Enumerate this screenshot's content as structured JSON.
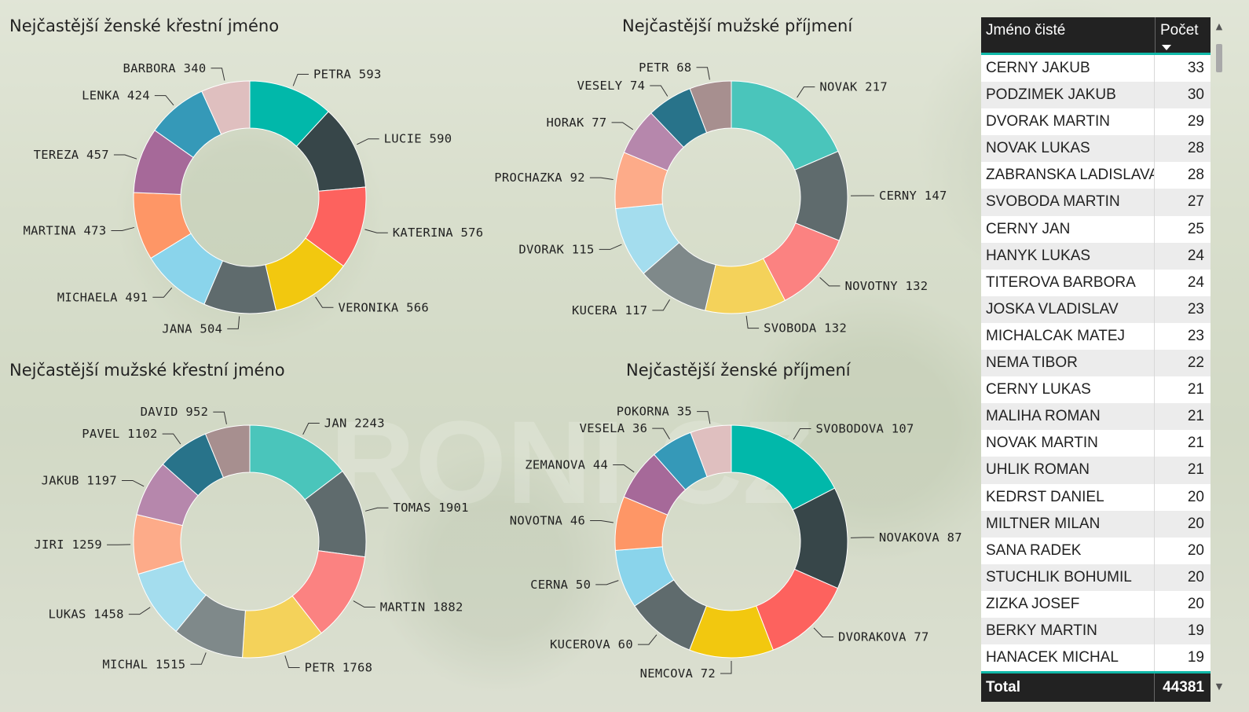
{
  "chart_data": [
    {
      "type": "pie",
      "title": "Nejčastější ženské křestní jméno",
      "slices": [
        {
          "label": "PETRA 593",
          "value": 593,
          "color": "#01B8AA"
        },
        {
          "label": "LUCIE 590",
          "value": 590,
          "color": "#374649"
        },
        {
          "label": "KATERINA 576",
          "value": 576,
          "color": "#FD625E"
        },
        {
          "label": "VERONIKA 566",
          "value": 566,
          "color": "#F2C80F"
        },
        {
          "label": "JANA 504",
          "value": 504,
          "color": "#5F6B6D"
        },
        {
          "label": "MICHAELA 491",
          "value": 491,
          "color": "#8AD4EB"
        },
        {
          "label": "MARTINA 473",
          "value": 473,
          "color": "#FE9666"
        },
        {
          "label": "TEREZA 457",
          "value": 457,
          "color": "#A66999"
        },
        {
          "label": "LENKA 424",
          "value": 424,
          "color": "#3599B8"
        },
        {
          "label": "BARBORA 340",
          "value": 340,
          "color": "#DFBFBF"
        }
      ]
    },
    {
      "type": "pie",
      "title": "Nejčastější mužské příjmení",
      "slices": [
        {
          "label": "NOVAK 217",
          "value": 217,
          "color": "#4AC5BB"
        },
        {
          "label": "CERNY 147",
          "value": 147,
          "color": "#5F6B6D"
        },
        {
          "label": "NOVOTNY 132",
          "value": 132,
          "color": "#FB8281"
        },
        {
          "label": "SVOBODA 132",
          "value": 132,
          "color": "#F4D25A"
        },
        {
          "label": "KUCERA 117",
          "value": 117,
          "color": "#7F898A"
        },
        {
          "label": "DVORAK 115",
          "value": 115,
          "color": "#A4DDEE"
        },
        {
          "label": "PROCHAZKA 92",
          "value": 92,
          "color": "#FDAB89"
        },
        {
          "label": "HORAK 77",
          "value": 77,
          "color": "#B687AC"
        },
        {
          "label": "VESELY 74",
          "value": 74,
          "color": "#28738A"
        },
        {
          "label": "PETR 68",
          "value": 68,
          "color": "#A78F8F"
        }
      ]
    },
    {
      "type": "pie",
      "title": "Nejčastější mužské křestní jméno",
      "slices": [
        {
          "label": "JAN 2243",
          "value": 2243,
          "color": "#4AC5BB"
        },
        {
          "label": "TOMAS 1901",
          "value": 1901,
          "color": "#5F6B6D"
        },
        {
          "label": "MARTIN 1882",
          "value": 1882,
          "color": "#FB8281"
        },
        {
          "label": "PETR 1768",
          "value": 1768,
          "color": "#F4D25A"
        },
        {
          "label": "MICHAL 1515",
          "value": 1515,
          "color": "#7F898A"
        },
        {
          "label": "LUKAS 1458",
          "value": 1458,
          "color": "#A4DDEE"
        },
        {
          "label": "JIRI 1259",
          "value": 1259,
          "color": "#FDAB89"
        },
        {
          "label": "JAKUB 1197",
          "value": 1197,
          "color": "#B687AC"
        },
        {
          "label": "PAVEL 1102",
          "value": 1102,
          "color": "#28738A"
        },
        {
          "label": "DAVID 952",
          "value": 952,
          "color": "#A78F8F"
        }
      ]
    },
    {
      "type": "pie",
      "title": "Nejčastější ženské příjmení",
      "slices": [
        {
          "label": "SVOBODOVA 107",
          "value": 107,
          "color": "#01B8AA"
        },
        {
          "label": "NOVAKOVA 87",
          "value": 87,
          "color": "#374649"
        },
        {
          "label": "DVORAKOVA 77",
          "value": 77,
          "color": "#FD625E"
        },
        {
          "label": "NEMCOVA 72",
          "value": 72,
          "color": "#F2C80F"
        },
        {
          "label": "KUCEROVA 60",
          "value": 60,
          "color": "#5F6B6D"
        },
        {
          "label": "CERNA 50",
          "value": 50,
          "color": "#8AD4EB"
        },
        {
          "label": "NOVOTNA 46",
          "value": 46,
          "color": "#FE9666"
        },
        {
          "label": "ZEMANOVA 44",
          "value": 44,
          "color": "#A66999"
        },
        {
          "label": "VESELA 36",
          "value": 36,
          "color": "#3599B8"
        },
        {
          "label": "POKORNA 35",
          "value": 35,
          "color": "#DFBFBF"
        }
      ]
    }
  ],
  "table": {
    "col_name": "Jméno čisté",
    "col_count": "Počet",
    "rows": [
      {
        "name": "CERNY JAKUB",
        "count": "33"
      },
      {
        "name": "PODZIMEK JAKUB",
        "count": "30"
      },
      {
        "name": "DVORAK MARTIN",
        "count": "29"
      },
      {
        "name": "NOVAK LUKAS",
        "count": "28"
      },
      {
        "name": "ZABRANSKA LADISLAVA",
        "count": "28"
      },
      {
        "name": "SVOBODA MARTIN",
        "count": "27"
      },
      {
        "name": "CERNY JAN",
        "count": "25"
      },
      {
        "name": "HANYK LUKAS",
        "count": "24"
      },
      {
        "name": "TITEROVA BARBORA",
        "count": "24"
      },
      {
        "name": "JOSKA VLADISLAV",
        "count": "23"
      },
      {
        "name": "MICHALCAK MATEJ",
        "count": "23"
      },
      {
        "name": "NEMA TIBOR",
        "count": "22"
      },
      {
        "name": "CERNY LUKAS",
        "count": "21"
      },
      {
        "name": "MALIHA ROMAN",
        "count": "21"
      },
      {
        "name": "NOVAK MARTIN",
        "count": "21"
      },
      {
        "name": "UHLIK ROMAN",
        "count": "21"
      },
      {
        "name": "KEDRST DANIEL",
        "count": "20"
      },
      {
        "name": "MILTNER MILAN",
        "count": "20"
      },
      {
        "name": "SANA RADEK",
        "count": "20"
      },
      {
        "name": "STUCHLIK BOHUMIL",
        "count": "20"
      },
      {
        "name": "ZIZKA JOSEF",
        "count": "20"
      },
      {
        "name": "BERKY MARTIN",
        "count": "19"
      },
      {
        "name": "HANACEK MICHAL",
        "count": "19"
      }
    ],
    "total_label": "Total",
    "total_value": "44381"
  },
  "watermark": "RONI.CZ",
  "scroll_icons": {
    "up": "chevron-up-icon",
    "down": "chevron-down-icon"
  }
}
